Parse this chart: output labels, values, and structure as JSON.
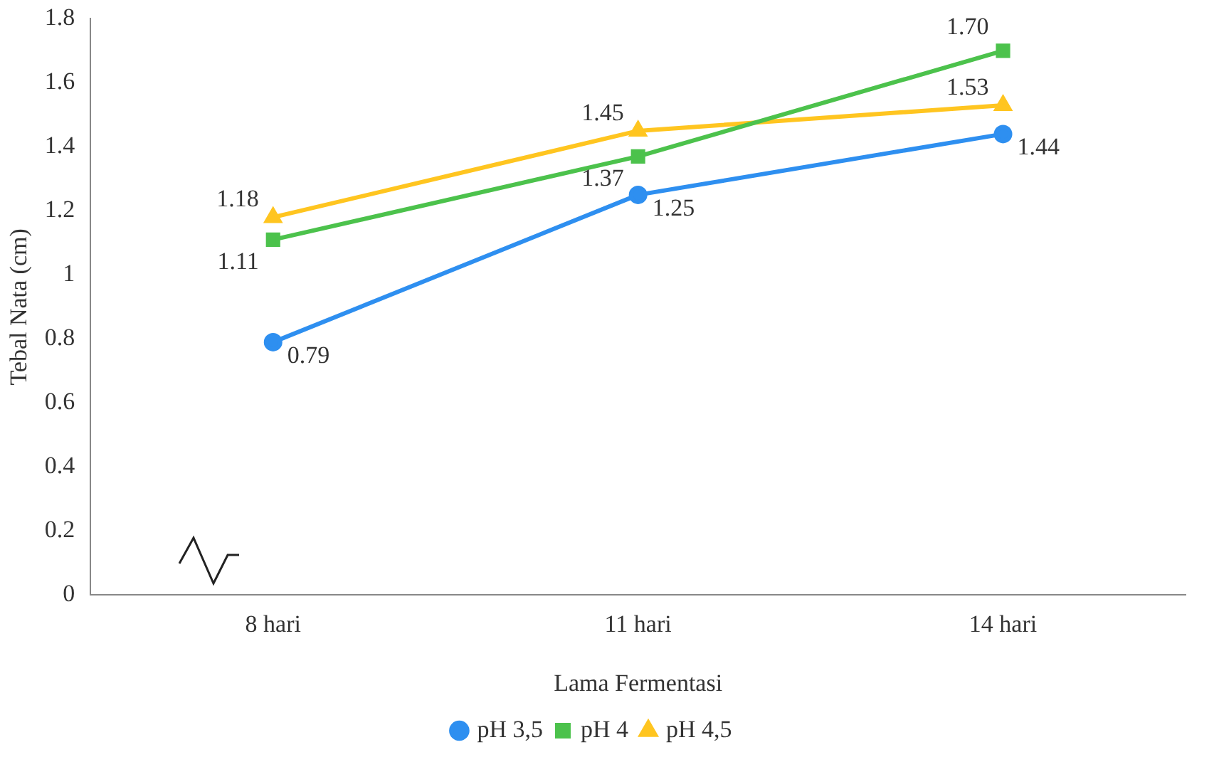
{
  "chart_data": {
    "type": "line",
    "xlabel": "Lama Fermentasi",
    "ylabel": "Tebal Nata (cm)",
    "categories": [
      "8 hari",
      "11 hari",
      "14 hari"
    ],
    "series": [
      {
        "name": "pH 3,5",
        "color": "#2e8ff0",
        "marker": "circle",
        "values": [
          0.79,
          1.25,
          1.44
        ],
        "value_labels": [
          "0.79",
          "1.25",
          "1.44"
        ]
      },
      {
        "name": "pH 4",
        "color": "#4cc24c",
        "marker": "square",
        "values": [
          1.11,
          1.37,
          1.7
        ],
        "value_labels": [
          "1.11",
          "1.37",
          "1.70"
        ]
      },
      {
        "name": "pH 4,5",
        "color": "#ffc520",
        "marker": "triangle",
        "values": [
          1.18,
          1.45,
          1.53
        ],
        "value_labels": [
          "1.18",
          "1.45",
          "1.53"
        ]
      }
    ],
    "ylim": [
      0,
      1.8
    ],
    "yticks": [
      0,
      0.2,
      0.4,
      0.6,
      0.8,
      1,
      1.2,
      1.4,
      1.6,
      1.8
    ],
    "grid": false,
    "legend": "bottom",
    "line_style": "solid"
  }
}
